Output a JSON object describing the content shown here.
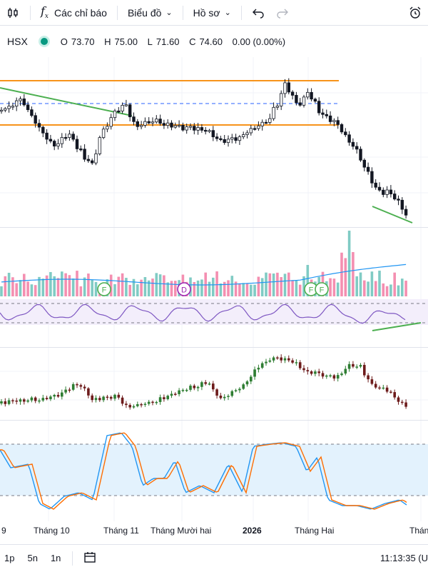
{
  "toolbar": {
    "indicators_label": "Các chỉ báo",
    "chart_type_label": "Biểu đồ",
    "profile_label": "Hồ sơ"
  },
  "symbol": {
    "exchange": "HSX",
    "open_label": "O",
    "open": "73.70",
    "high_label": "H",
    "high": "75.00",
    "low_label": "L",
    "low": "71.60",
    "close_label": "C",
    "close": "74.60",
    "change": "0.00 (0.00%)"
  },
  "markers": [
    "F",
    "D",
    "F",
    "F"
  ],
  "xaxis": {
    "labels": [
      "9",
      "Tháng 10",
      "Tháng 11",
      "Tháng Mười hai",
      "2026",
      "Tháng Hai",
      "Tháng"
    ]
  },
  "bottom": {
    "timeframes": [
      "1p",
      "5n",
      "1n"
    ],
    "clock": "11:13:35 (U"
  },
  "colors": {
    "up": "#26a69a",
    "down": "#ef5350",
    "candle": "#131722",
    "level": "#f7931a",
    "trend": "#4caf50",
    "dashed": "#2962ff",
    "band": "#e8f4fc"
  }
}
